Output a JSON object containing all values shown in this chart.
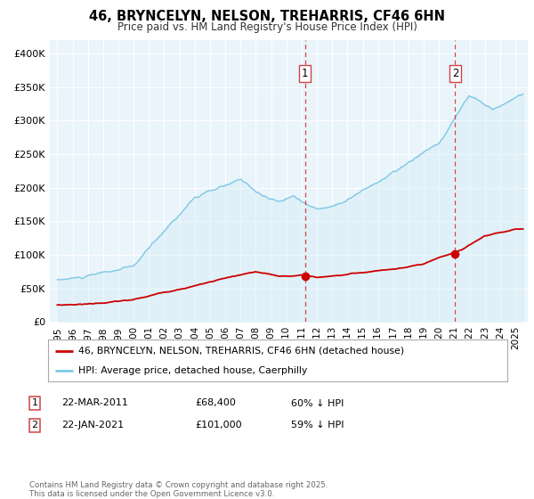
{
  "title": "46, BRYNCELYN, NELSON, TREHARRIS, CF46 6HN",
  "subtitle": "Price paid vs. HM Land Registry's House Price Index (HPI)",
  "hpi_label": "HPI: Average price, detached house, Caerphilly",
  "price_label": "46, BRYNCELYN, NELSON, TREHARRIS, CF46 6HN (detached house)",
  "hpi_color": "#7ec8e3",
  "hpi_fill_color": "#d0eaf5",
  "price_color": "#cc0000",
  "marker_color": "#cc0000",
  "vline_color": "#cc4444",
  "plot_bg": "#eaf4fb",
  "ylim": [
    0,
    420000
  ],
  "yticks": [
    0,
    50000,
    100000,
    150000,
    200000,
    250000,
    300000,
    350000,
    400000
  ],
  "ytick_labels": [
    "£0",
    "£50K",
    "£100K",
    "£150K",
    "£200K",
    "£250K",
    "£300K",
    "£350K",
    "£400K"
  ],
  "xlim": [
    1994.5,
    2025.8
  ],
  "xticks": [
    1995,
    1996,
    1997,
    1998,
    1999,
    2000,
    2001,
    2002,
    2003,
    2004,
    2005,
    2006,
    2007,
    2008,
    2009,
    2010,
    2011,
    2012,
    2013,
    2014,
    2015,
    2016,
    2017,
    2018,
    2019,
    2020,
    2021,
    2022,
    2023,
    2024,
    2025
  ],
  "footer": "Contains HM Land Registry data © Crown copyright and database right 2025.\nThis data is licensed under the Open Government Licence v3.0.",
  "event1": {
    "label": "1",
    "date": "22-MAR-2011",
    "price": "£68,400",
    "hpi_pct": "60% ↓ HPI",
    "x_year": 2011.22,
    "price_value": 68400
  },
  "event2": {
    "label": "2",
    "date": "22-JAN-2021",
    "price": "£101,000",
    "hpi_pct": "59% ↓ HPI",
    "x_year": 2021.06,
    "price_value": 101000
  }
}
